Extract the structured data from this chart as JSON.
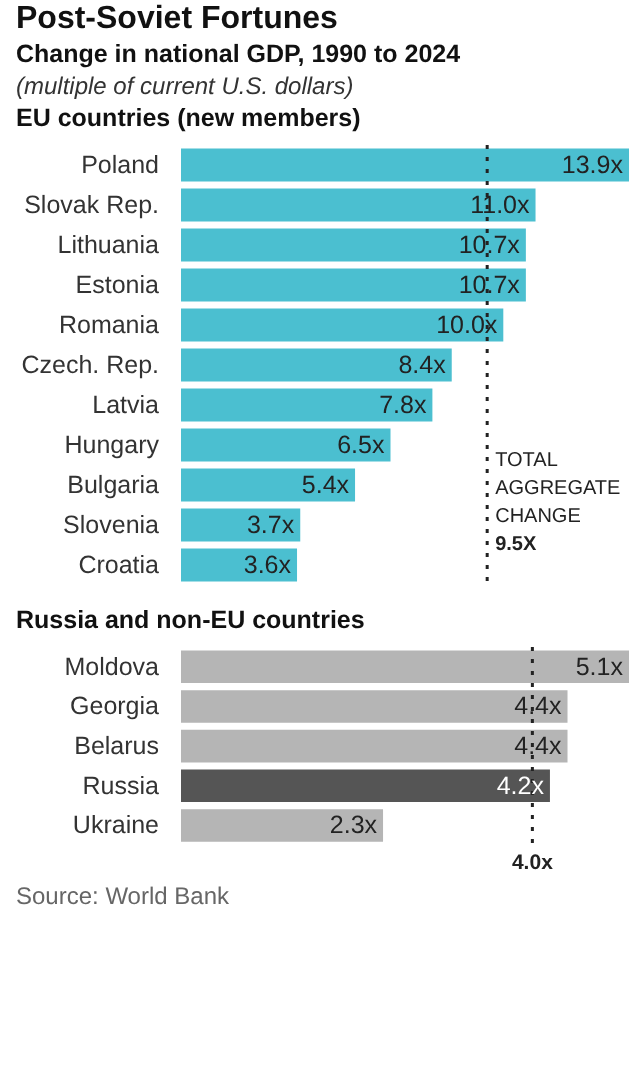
{
  "chart_data": [
    {
      "type": "bar",
      "orientation": "horizontal",
      "title": "Post-Soviet Fortunes",
      "subtitle": "Change in national GDP, 1990 to 2024",
      "annotations": [
        "(multiple of current U.S. dollars)",
        "EU countries (new members)"
      ],
      "categories": [
        "Poland",
        "Slovak Rep.",
        "Lithuania",
        "Estonia",
        "Romania",
        "Czech. Rep.",
        "Latvia",
        "Hungary",
        "Bulgaria",
        "Slovenia",
        "Croatia"
      ],
      "values": [
        13.9,
        11.0,
        10.7,
        10.7,
        10.0,
        8.4,
        7.8,
        6.5,
        5.4,
        3.7,
        3.6
      ],
      "value_labels": [
        "13.9x",
        "11.0x",
        "10.7x",
        "10.7x",
        "10.0x",
        "8.4x",
        "7.8x",
        "6.5x",
        "5.4x",
        "3.7x",
        "3.6x"
      ],
      "color": "#4bbfd0",
      "tick_labels": "y",
      "ref_lines": [
        {
          "axis": "x",
          "value": 9.5,
          "label": "TOTAL AGGREGATE CHANGE 9.5X",
          "line_style": "dotted",
          "color": "#222222"
        }
      ]
    },
    {
      "type": "bar",
      "orientation": "horizontal",
      "annotations": [
        "Russia and non-EU countries",
        "Source: World Bank"
      ],
      "categories": [
        "Moldova",
        "Georgia",
        "Belarus",
        "Russia",
        "Ukraine"
      ],
      "values": [
        5.1,
        4.4,
        4.4,
        4.2,
        2.3
      ],
      "value_labels": [
        "5.1x",
        "4.4x",
        "4.4x",
        "4.2x",
        "2.3x"
      ],
      "colors": [
        "#b5b5b5",
        "#b5b5b5",
        "#b5b5b5",
        "#555555",
        "#b5b5b5"
      ],
      "tick_labels": "y",
      "ref_lines": [
        {
          "axis": "x",
          "value": 4.0,
          "label": "4.0x",
          "line_style": "dotted",
          "color": "#222222"
        }
      ]
    }
  ]
}
